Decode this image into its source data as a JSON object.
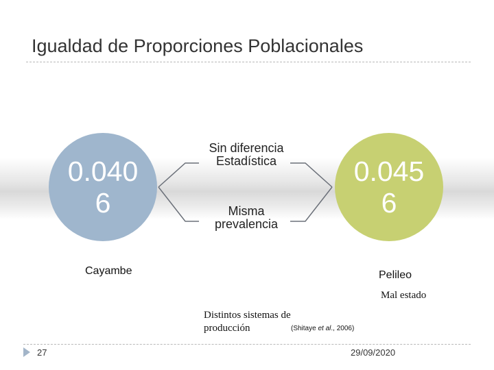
{
  "slide": {
    "title": "Igualdad de Proporciones Poblacionales",
    "page_number": "27",
    "date": "29/09/2020"
  },
  "left": {
    "value": "0.0406",
    "place": "Cayambe",
    "color": "#9fb6cd"
  },
  "right": {
    "value": "0.0456",
    "place": "Pelileo",
    "note": "Mal estado",
    "color": "#c7d072"
  },
  "middle": {
    "top_label": "Sin diferencia Estadística",
    "bottom_label": "Misma prevalencia"
  },
  "notes": {
    "center": "Distintos sistemas de producción",
    "citation_author": "(Shitaye ",
    "citation_etal": "et al",
    "citation_year": "., 2006)"
  }
}
